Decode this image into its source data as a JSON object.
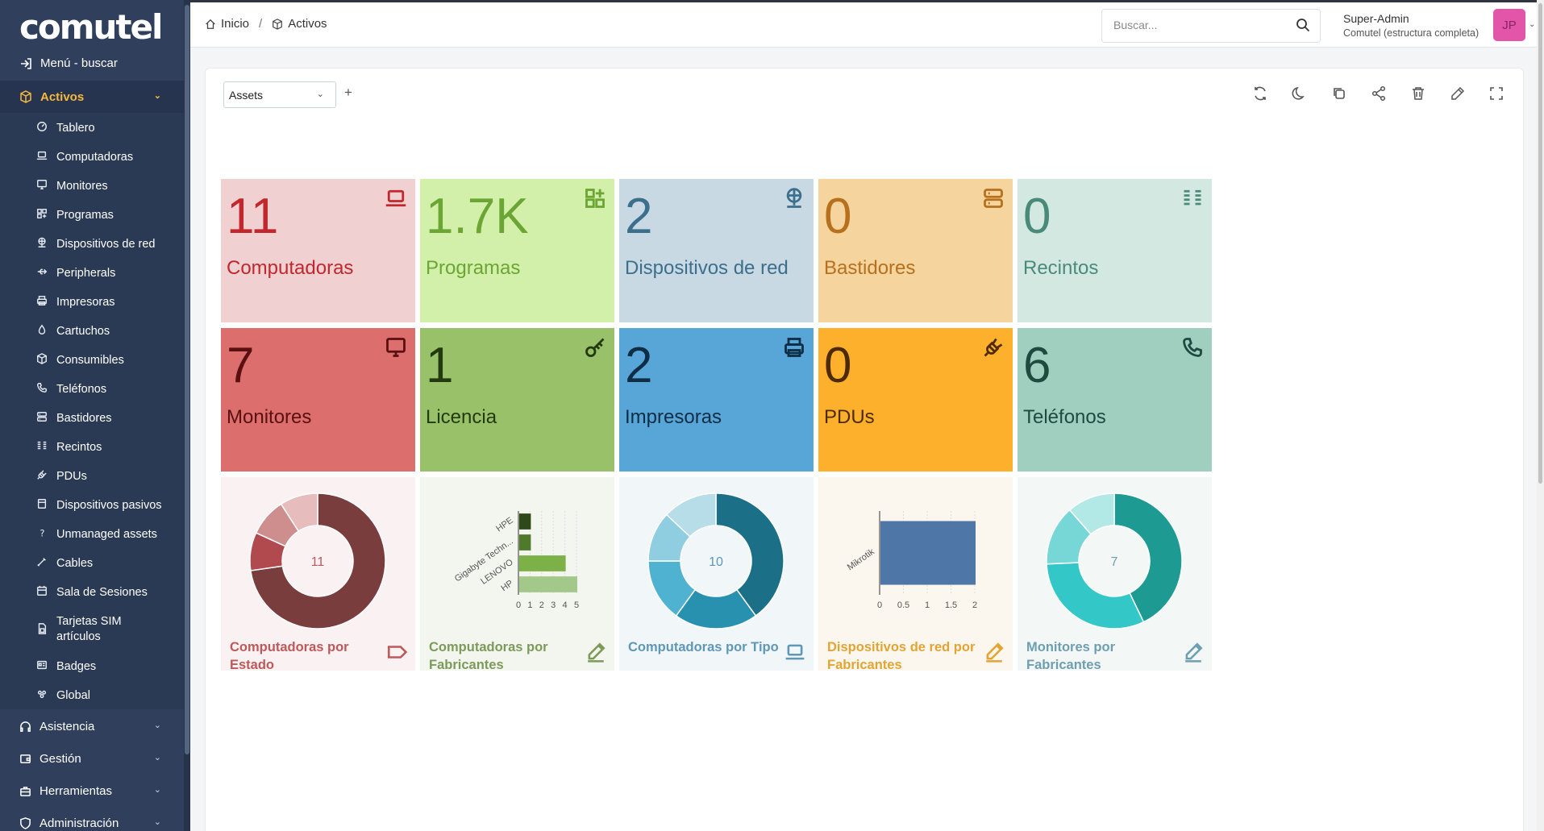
{
  "app": {
    "logo_text": "Comutel"
  },
  "sidebar": {
    "menu_search": "Menú - buscar",
    "active_category": "Activos",
    "items": [
      {
        "label": "Tablero",
        "icon": "dashboard-icon"
      },
      {
        "label": "Computadoras",
        "icon": "laptop-icon"
      },
      {
        "label": "Monitores",
        "icon": "monitor-icon"
      },
      {
        "label": "Programas",
        "icon": "apps-icon"
      },
      {
        "label": "Dispositivos de red",
        "icon": "network-icon"
      },
      {
        "label": "Peripherals",
        "icon": "usb-icon"
      },
      {
        "label": "Impresoras",
        "icon": "printer-icon"
      },
      {
        "label": "Cartuchos",
        "icon": "droplet-icon"
      },
      {
        "label": "Consumibles",
        "icon": "package-icon"
      },
      {
        "label": "Teléfonos",
        "icon": "phone-icon"
      },
      {
        "label": "Bastidores",
        "icon": "server-icon"
      },
      {
        "label": "Recintos",
        "icon": "columns-icon"
      },
      {
        "label": "PDUs",
        "icon": "plug-icon"
      },
      {
        "label": "Dispositivos pasivos",
        "icon": "device-icon"
      },
      {
        "label": "Unmanaged assets",
        "icon": "question-icon"
      },
      {
        "label": "Cables",
        "icon": "cable-icon"
      },
      {
        "label": "Sala de Sesiones",
        "icon": "calendar-icon"
      },
      {
        "label": "Tarjetas SIM artículos",
        "icon": "sim-icon"
      },
      {
        "label": "Badges",
        "icon": "badge-icon"
      },
      {
        "label": "Global",
        "icon": "global-icon"
      }
    ],
    "categories": [
      {
        "label": "Asistencia"
      },
      {
        "label": "Gestión"
      },
      {
        "label": "Herramientas"
      },
      {
        "label": "Administración"
      }
    ]
  },
  "header": {
    "breadcrumb": [
      "Inicio",
      "Activos"
    ],
    "search_placeholder": "Buscar...",
    "user_name": "Super-Admin",
    "user_entity": "Comutel (estructura completa)",
    "avatar_initials": "JP",
    "avatar_color": "#e255a9"
  },
  "dashboard": {
    "selected": "Assets",
    "add_label": "+"
  },
  "tiles": [
    {
      "value": "11",
      "label": "Computadoras",
      "icon": "laptop-icon",
      "bg": "#f1d0d1",
      "fg": "#c1272d"
    },
    {
      "value": "1.7K",
      "label": "Programas",
      "icon": "apps-plus-icon",
      "bg": "#d2f0a9",
      "fg": "#6ba534"
    },
    {
      "value": "2",
      "label": "Dispositivos de red",
      "icon": "network-icon",
      "bg": "#c9d9e4",
      "fg": "#3b6f8c"
    },
    {
      "value": "0",
      "label": "Bastidores",
      "icon": "server-icon",
      "bg": "#f5d49d",
      "fg": "#b7701d"
    },
    {
      "value": "0",
      "label": "Recintos",
      "icon": "columns-icon",
      "bg": "#d4e8e2",
      "fg": "#4a8a79"
    },
    {
      "value": "7",
      "label": "Monitores",
      "icon": "monitor-icon",
      "bg": "#dc6e6e",
      "fg": "#5a1010"
    },
    {
      "value": "1",
      "label": "Licencia",
      "icon": "key-icon",
      "bg": "#99c169",
      "fg": "#233a10"
    },
    {
      "value": "2",
      "label": "Impresoras",
      "icon": "printer-icon",
      "bg": "#58a5d8",
      "fg": "#0f2d44"
    },
    {
      "value": "0",
      "label": "PDUs",
      "icon": "plug-icon",
      "bg": "#fcb02c",
      "fg": "#4d2a00"
    },
    {
      "value": "6",
      "label": "Teléfonos",
      "icon": "phone-icon",
      "bg": "#a0cfc0",
      "fg": "#1f4a3e"
    }
  ],
  "cards": [
    {
      "title": "Computadoras por Estado",
      "icon": "tag-icon",
      "bg": "#faf2f2",
      "fg": "#c0585a"
    },
    {
      "title": "Computadoras por Fabricantes",
      "icon": "edit-icon",
      "bg": "#f3f6ef",
      "fg": "#7c9a5a"
    },
    {
      "title": "Computadoras por Tipo",
      "icon": "laptop-icon",
      "bg": "#f1f6f9",
      "fg": "#5f98b7"
    },
    {
      "title": "Dispositivos de red por Fabricantes",
      "icon": "edit-icon",
      "bg": "#fcf7ee",
      "fg": "#e3a434"
    },
    {
      "title": "Monitores por Fabricantes",
      "icon": "edit-icon",
      "bg": "#f3f7f6",
      "fg": "#6d9fb1"
    }
  ],
  "chart_data": [
    {
      "type": "pie",
      "title": "Computadoras por Estado",
      "center_label": "11",
      "values": [
        8,
        1,
        1,
        1
      ],
      "colors": [
        "#7a3d3d",
        "#b04a4e",
        "#cf8e8e",
        "#e6bcbc"
      ]
    },
    {
      "type": "bar",
      "orientation": "horizontal",
      "title": "Computadoras por Fabricantes",
      "categories": [
        "HPE",
        "Gigabyte Techn...",
        "LENOVO",
        "HP"
      ],
      "values": [
        1,
        1,
        4,
        5
      ],
      "xlim": [
        0,
        5
      ],
      "ticks": [
        "0",
        "1",
        "2",
        "3",
        "4",
        "5"
      ],
      "colors": [
        "#2e4a1a",
        "#4e7a2a",
        "#7bb146",
        "#a2c98a"
      ]
    },
    {
      "type": "pie",
      "title": "Computadoras por Tipo",
      "center_label": "10",
      "values": [
        4,
        2,
        1.5,
        1.2,
        1.3
      ],
      "colors": [
        "#1b7088",
        "#2891b0",
        "#4fb2d1",
        "#8fcde0",
        "#b6dde8"
      ]
    },
    {
      "type": "bar",
      "orientation": "horizontal",
      "title": "Dispositivos de red por Fabricantes",
      "categories": [
        "Mikrotik"
      ],
      "values": [
        2
      ],
      "xlim": [
        0,
        2
      ],
      "ticks": [
        "0",
        "0.5",
        "1",
        "1.5",
        "2"
      ],
      "colors": [
        "#4e76a6"
      ]
    },
    {
      "type": "pie",
      "title": "Monitores por Fabricantes",
      "center_label": "7",
      "values": [
        3,
        2.2,
        1,
        0.8
      ],
      "colors": [
        "#1d9b93",
        "#33c7c7",
        "#77d6d6",
        "#b2e8e6"
      ]
    }
  ]
}
